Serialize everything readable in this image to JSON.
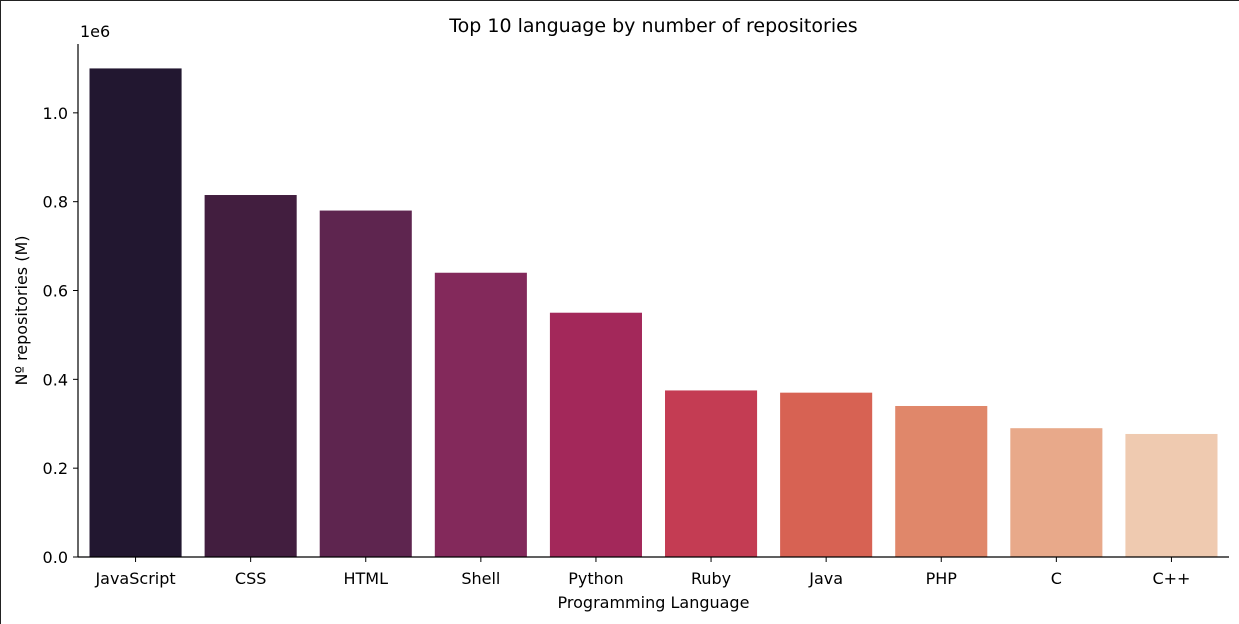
{
  "chart_data": {
    "type": "bar",
    "title": "Top 10 language by number of repositories",
    "xlabel": "Programming Language",
    "ylabel": "Nº repositories (M)",
    "offset_label": "1e6",
    "categories": [
      "JavaScript",
      "CSS",
      "HTML",
      "Shell",
      "Python",
      "Ruby",
      "Java",
      "PHP",
      "C",
      "C++"
    ],
    "values": [
      1100000,
      815000,
      780000,
      640000,
      550000,
      375000,
      370000,
      340000,
      290000,
      277000
    ],
    "colors": [
      "#221730",
      "#421e3f",
      "#5e254f",
      "#83295b",
      "#a3285a",
      "#c43c53",
      "#d76253",
      "#e0876a",
      "#e8a98a",
      "#efcab0"
    ],
    "yticks": [
      0.0,
      0.2,
      0.4,
      0.6,
      0.8,
      1.0
    ],
    "ytick_labels": [
      "0.0",
      "0.2",
      "0.4",
      "0.6",
      "0.8",
      "1.0"
    ],
    "ylim": [
      0,
      1155000
    ],
    "grid": false,
    "legend": "none",
    "spines": "left-bottom"
  }
}
